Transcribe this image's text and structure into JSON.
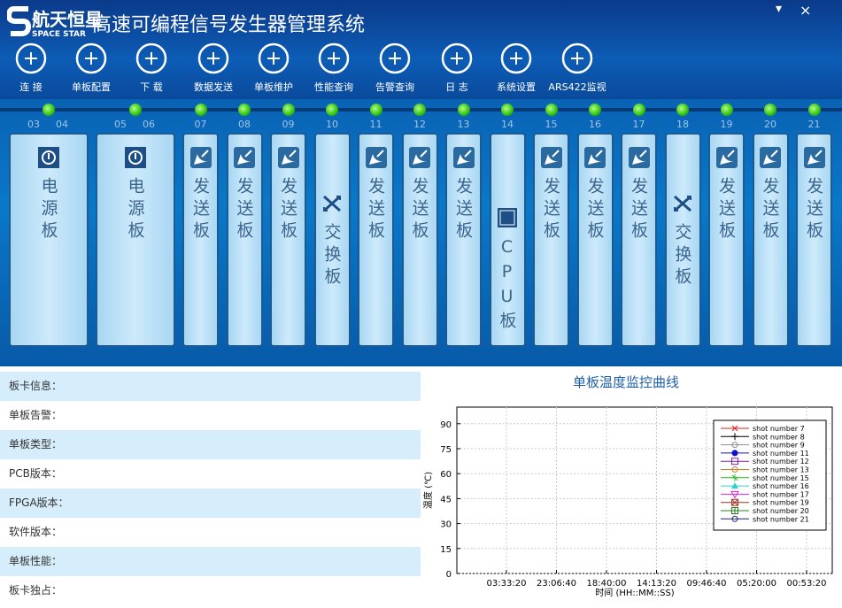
{
  "header": {
    "logo": "航天恒星",
    "logo_sub": "SPACE STAR",
    "title": "高速可编程信号发生器管理系统",
    "controls": [
      "▾",
      "×"
    ]
  },
  "toolbar": [
    "连 接",
    "单板配置",
    "下 载",
    "数据发送",
    "单板维护",
    "性能查询",
    "告警查询",
    "日 志",
    "系统设置",
    "ARS422监视"
  ],
  "boards": [
    {
      "slots": [
        "03",
        "04"
      ],
      "label": "电源板",
      "icon": "power"
    },
    {
      "slots": [
        "05",
        "06"
      ],
      "label": "电源板",
      "icon": "power"
    },
    {
      "slots": [
        "07"
      ],
      "label": "发送板",
      "icon": "send"
    },
    {
      "slots": [
        "08"
      ],
      "label": "发送板",
      "icon": "send"
    },
    {
      "slots": [
        "09"
      ],
      "label": "发送板",
      "icon": "send"
    },
    {
      "slots": [
        "10"
      ],
      "label": "交换板",
      "icon": "switch"
    },
    {
      "slots": [
        "11"
      ],
      "label": "发送板",
      "icon": "send"
    },
    {
      "slots": [
        "12"
      ],
      "label": "发送板",
      "icon": "send"
    },
    {
      "slots": [
        "13"
      ],
      "label": "发送板",
      "icon": "send"
    },
    {
      "slots": [
        "14"
      ],
      "label": "CPU板",
      "icon": "cpu"
    },
    {
      "slots": [
        "15"
      ],
      "label": "发送板",
      "icon": "send"
    },
    {
      "slots": [
        "16"
      ],
      "label": "发送板",
      "icon": "send"
    },
    {
      "slots": [
        "17"
      ],
      "label": "发送板",
      "icon": "send"
    },
    {
      "slots": [
        "18"
      ],
      "label": "交换板",
      "icon": "switch"
    },
    {
      "slots": [
        "19"
      ],
      "label": "发送板",
      "icon": "send"
    },
    {
      "slots": [
        "20"
      ],
      "label": "发送板",
      "icon": "send"
    },
    {
      "slots": [
        "21"
      ],
      "label": "发送板",
      "icon": "send"
    }
  ],
  "info": [
    "板卡信息：",
    "单板告警：",
    "单板类型：",
    "PCB版本：",
    "FPGA版本：",
    "软件版本：",
    "单板性能：",
    "板卡独占："
  ],
  "chart": {
    "type": "line",
    "title": "单板温度监控曲线",
    "x_label": "时间 (HH::MM::SS)",
    "y_label": "温度 (℃)",
    "ylim": [
      0,
      100
    ],
    "yticks": [
      0,
      15,
      30,
      45,
      60,
      75,
      90
    ],
    "xtick_labels": [
      "03:33:20",
      "23:06:40",
      "18:40:00",
      "14:13:20",
      "09:46:40",
      "05:20:00",
      "00:53:20"
    ],
    "grid": true,
    "series": [
      {
        "name": "shot number 7",
        "color": "#e02020",
        "marker": "x"
      },
      {
        "name": "shot number 8",
        "color": "#000000",
        "marker": "plus"
      },
      {
        "name": "shot number 9",
        "color": "#909090",
        "marker": "circle"
      },
      {
        "name": "shot number 11",
        "color": "#1010d0",
        "marker": "dot"
      },
      {
        "name": "shot number 12",
        "color": "#8020a0",
        "marker": "square"
      },
      {
        "name": "shot number 13",
        "color": "#d08020",
        "marker": "circle"
      },
      {
        "name": "shot number 15",
        "color": "#20c020",
        "marker": "star"
      },
      {
        "name": "shot number 16",
        "color": "#30d0d0",
        "marker": "triangle"
      },
      {
        "name": "shot number 17",
        "color": "#e020e0",
        "marker": "triangle-down"
      },
      {
        "name": "shot number 19",
        "color": "#a03020",
        "marker": "square-x"
      },
      {
        "name": "shot number 20",
        "color": "#208020",
        "marker": "square-plus"
      },
      {
        "name": "shot number 21",
        "color": "#202080",
        "marker": "circle"
      }
    ]
  }
}
